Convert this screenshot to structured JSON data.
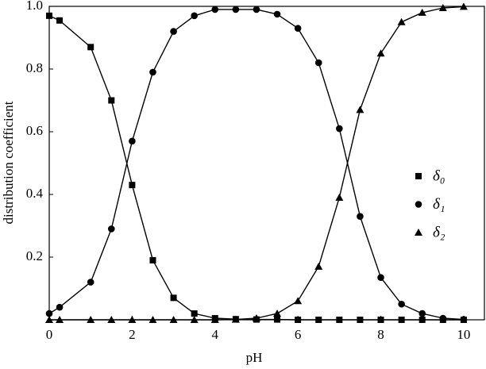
{
  "chart_data": {
    "type": "line",
    "xlabel": "pH",
    "ylabel": "distribution coefficient",
    "x": [
      0,
      0.25,
      1,
      1.5,
      2,
      2.5,
      3,
      3.5,
      4,
      4.5,
      5,
      5.5,
      6,
      6.5,
      7,
      7.5,
      8,
      8.5,
      9,
      9.5,
      10
    ],
    "series": [
      {
        "name": "δ₀",
        "marker": "square",
        "color": "#000000",
        "values": [
          0.97,
          0.955,
          0.87,
          0.7,
          0.43,
          0.19,
          0.07,
          0.02,
          0.005,
          0.002,
          0.001,
          0.001,
          0,
          0,
          0,
          0,
          0,
          0,
          0,
          0,
          0
        ]
      },
      {
        "name": "δ₁",
        "marker": "circle",
        "color": "#000000",
        "values": [
          0.02,
          0.04,
          0.12,
          0.29,
          0.57,
          0.79,
          0.92,
          0.97,
          0.99,
          0.99,
          0.99,
          0.975,
          0.93,
          0.82,
          0.61,
          0.33,
          0.135,
          0.05,
          0.02,
          0.005,
          0.001
        ]
      },
      {
        "name": "δ₂",
        "marker": "triangle",
        "color": "#000000",
        "values": [
          0,
          0,
          0,
          0,
          0,
          0,
          0,
          0,
          0,
          0.001,
          0.005,
          0.02,
          0.06,
          0.17,
          0.39,
          0.67,
          0.85,
          0.95,
          0.98,
          0.995,
          0.999
        ]
      }
    ],
    "xlim": [
      0,
      10.5
    ],
    "xticks": [
      0,
      2,
      4,
      6,
      8,
      10
    ],
    "ylim": [
      0,
      1
    ],
    "yticks": [
      0.2,
      0.4,
      0.6,
      0.8,
      {
        "value": 1,
        "label": "1.0"
      }
    ],
    "legend": "right"
  }
}
